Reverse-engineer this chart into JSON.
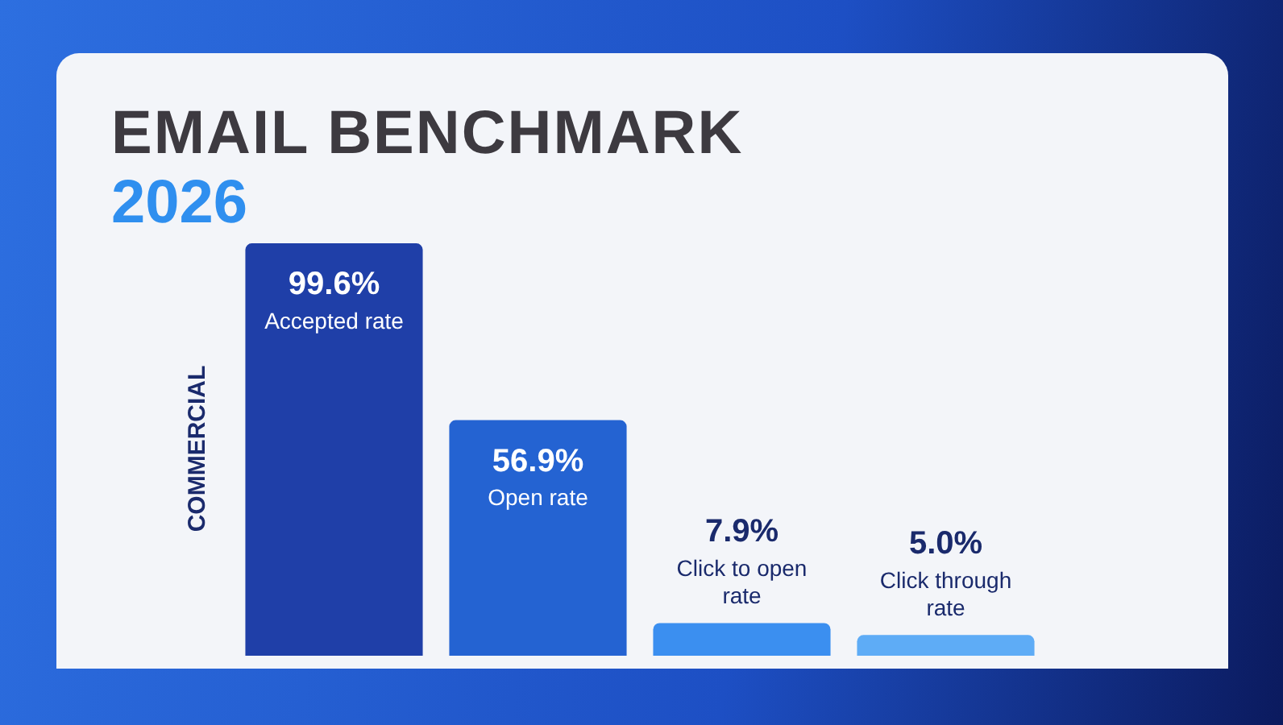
{
  "chart_data": {
    "type": "bar",
    "title": "EMAIL BENCHMARK",
    "subtitle": "2026",
    "ylabel": "COMMERCIAL",
    "categories": [
      "Accepted rate",
      "Open rate",
      "Click to open rate",
      "Click through rate"
    ],
    "values": [
      99.6,
      56.9,
      7.9,
      5.0
    ],
    "colors": [
      "#1f3fa8",
      "#2463d2",
      "#3b8ff0",
      "#5eacf6"
    ],
    "value_labels": [
      "99.6%",
      "56.9%",
      "7.9%",
      "5.0%"
    ],
    "ylim": [
      0,
      100
    ],
    "tick_labels": false,
    "grid": false,
    "legend": false
  }
}
